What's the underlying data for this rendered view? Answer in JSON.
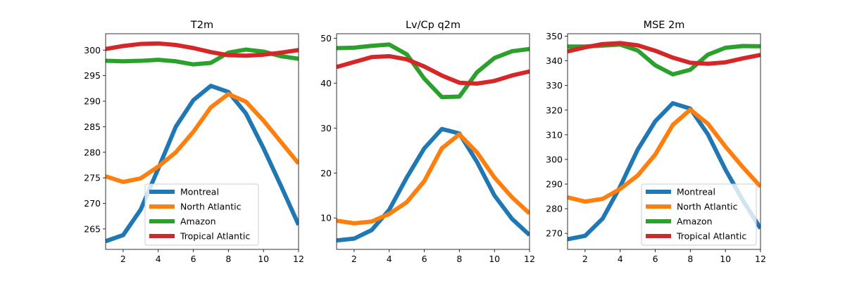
{
  "chart_data": [
    {
      "type": "line",
      "title": "T2m",
      "xlabel": "",
      "ylabel": "",
      "x": [
        1,
        2,
        3,
        4,
        5,
        6,
        7,
        8,
        9,
        10,
        11,
        12
      ],
      "xlim": [
        1,
        12
      ],
      "ylim": [
        261,
        303.2
      ],
      "xticks": [
        2,
        4,
        6,
        8,
        10,
        12
      ],
      "yticks": [
        265,
        270,
        275,
        280,
        285,
        290,
        295,
        300
      ],
      "grid": false,
      "legend": "lower-right",
      "series": [
        {
          "name": "Montreal",
          "color": "#1f77b4",
          "values": [
            262.6,
            263.8,
            268.8,
            276.8,
            285.0,
            290.2,
            293.0,
            291.8,
            287.6,
            280.8,
            273.4,
            265.8
          ]
        },
        {
          "name": "North Atlantic",
          "color": "#ff7f0e",
          "values": [
            275.3,
            274.2,
            274.9,
            277.2,
            280.0,
            284.0,
            288.8,
            291.4,
            289.9,
            286.2,
            282.0,
            277.8
          ]
        },
        {
          "name": "Amazon",
          "color": "#2ca02c",
          "values": [
            297.9,
            297.8,
            297.9,
            298.1,
            297.8,
            297.2,
            297.5,
            299.5,
            300.1,
            299.7,
            298.8,
            298.3
          ]
        },
        {
          "name": "Tropical Atlantic",
          "color": "#d62728",
          "values": [
            300.2,
            300.8,
            301.2,
            301.3,
            301.0,
            300.4,
            299.6,
            299.0,
            298.9,
            299.1,
            299.5,
            300.0
          ]
        }
      ]
    },
    {
      "type": "line",
      "title": "Lv/Cp q2m",
      "xlabel": "",
      "ylabel": "",
      "x": [
        1,
        2,
        3,
        4,
        5,
        6,
        7,
        8,
        9,
        10,
        11,
        12
      ],
      "xlim": [
        1,
        12
      ],
      "ylim": [
        3.0,
        51.0
      ],
      "xticks": [
        2,
        4,
        6,
        8,
        10,
        12
      ],
      "yticks": [
        10,
        20,
        30,
        40,
        50
      ],
      "grid": false,
      "legend": "",
      "series": [
        {
          "name": "Montreal",
          "color": "#1f77b4",
          "values": [
            5.0,
            5.4,
            7.3,
            11.8,
            19.0,
            25.5,
            29.8,
            28.8,
            22.5,
            15.0,
            9.8,
            6.2
          ]
        },
        {
          "name": "North Atlantic",
          "color": "#ff7f0e",
          "values": [
            9.4,
            8.8,
            9.2,
            10.9,
            13.5,
            18.2,
            25.5,
            28.6,
            24.6,
            19.0,
            14.6,
            11.0
          ]
        },
        {
          "name": "Amazon",
          "color": "#2ca02c",
          "values": [
            47.8,
            47.9,
            48.3,
            48.6,
            46.4,
            41.0,
            36.9,
            37.0,
            42.4,
            45.6,
            47.1,
            47.6
          ]
        },
        {
          "name": "Tropical Atlantic",
          "color": "#d62728",
          "values": [
            43.6,
            44.7,
            45.8,
            46.0,
            45.3,
            43.7,
            41.7,
            40.1,
            39.9,
            40.5,
            41.7,
            42.6
          ]
        }
      ]
    },
    {
      "type": "line",
      "title": "MSE 2m",
      "xlabel": "",
      "ylabel": "",
      "x": [
        1,
        2,
        3,
        4,
        5,
        6,
        7,
        8,
        9,
        10,
        11,
        12
      ],
      "xlim": [
        1,
        12
      ],
      "ylim": [
        263.5,
        351.0
      ],
      "xticks": [
        2,
        4,
        6,
        8,
        10,
        12
      ],
      "yticks": [
        270,
        280,
        290,
        300,
        310,
        320,
        330,
        340,
        350
      ],
      "grid": false,
      "legend": "lower-right",
      "series": [
        {
          "name": "Montreal",
          "color": "#1f77b4",
          "values": [
            267.6,
            269.0,
            276.0,
            289.0,
            304.0,
            315.5,
            322.8,
            320.6,
            310.2,
            295.9,
            283.3,
            272.0
          ]
        },
        {
          "name": "North Atlantic",
          "color": "#ff7f0e",
          "values": [
            284.6,
            282.9,
            284.0,
            288.0,
            293.5,
            302.0,
            314.0,
            320.2,
            314.5,
            305.2,
            296.8,
            289.0
          ]
        },
        {
          "name": "Amazon",
          "color": "#2ca02c",
          "values": [
            345.8,
            345.8,
            346.2,
            346.6,
            344.2,
            338.2,
            334.5,
            336.4,
            342.5,
            345.3,
            346.0,
            345.9
          ]
        },
        {
          "name": "Tropical Atlantic",
          "color": "#d62728",
          "values": [
            343.8,
            345.5,
            346.8,
            347.2,
            346.3,
            344.1,
            341.3,
            339.2,
            338.8,
            339.4,
            341.0,
            342.4
          ]
        }
      ]
    }
  ]
}
